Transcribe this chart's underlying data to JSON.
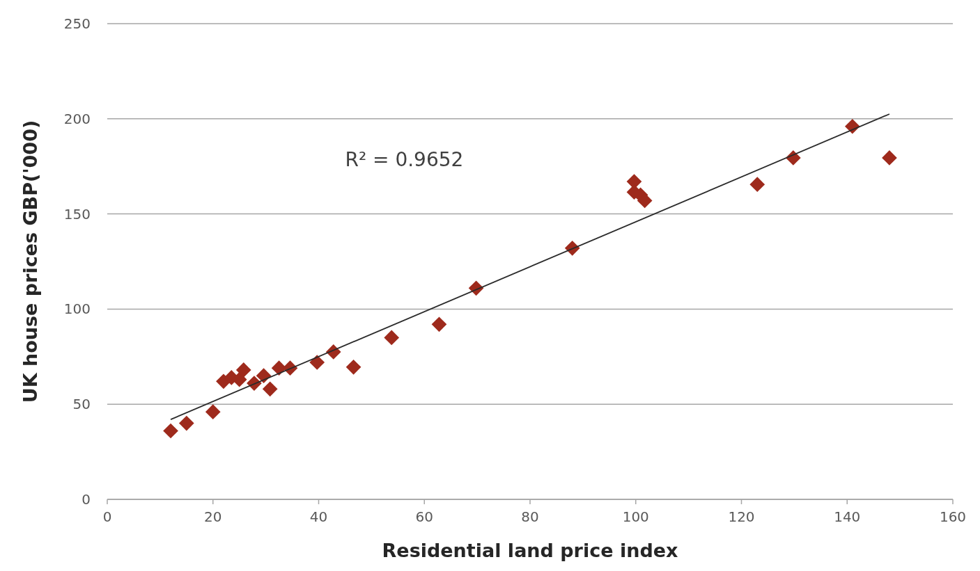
{
  "chart_data": {
    "type": "scatter",
    "xlabel": "Residential land price index",
    "ylabel": "UK house prices GBP('000)",
    "xlim": [
      0,
      160
    ],
    "xticks": [
      0,
      20,
      40,
      60,
      80,
      100,
      120,
      140,
      160
    ],
    "ylim": [
      0,
      250
    ],
    "yticks": [
      0,
      50,
      100,
      150,
      200,
      250
    ],
    "grid": "y",
    "marker": "diamond",
    "annotations": [
      "R² = 0.9652"
    ],
    "series": [
      {
        "color": "#9e2a1c",
        "x": [
          12,
          15,
          20,
          22,
          23.5,
          25,
          25.8,
          27.8,
          29.6,
          30.8,
          32.5,
          34.6,
          39.7,
          42.8,
          46.6,
          53.8,
          62.8,
          69.8,
          88,
          99.7,
          99.7,
          100.9,
          101.7,
          123,
          129.8,
          141,
          148
        ],
        "values": [
          36,
          40,
          46,
          62,
          64,
          63,
          68,
          61,
          65,
          58,
          69,
          69,
          72,
          77.5,
          69.5,
          85,
          92,
          111,
          132,
          167,
          161.5,
          160,
          157,
          165.5,
          179.5,
          196,
          179.5
        ]
      },
      {
        "type": "line",
        "color": "#2b2b2b",
        "marker": "none",
        "x": [
          12,
          148
        ],
        "values": [
          42,
          202.5
        ]
      }
    ]
  }
}
